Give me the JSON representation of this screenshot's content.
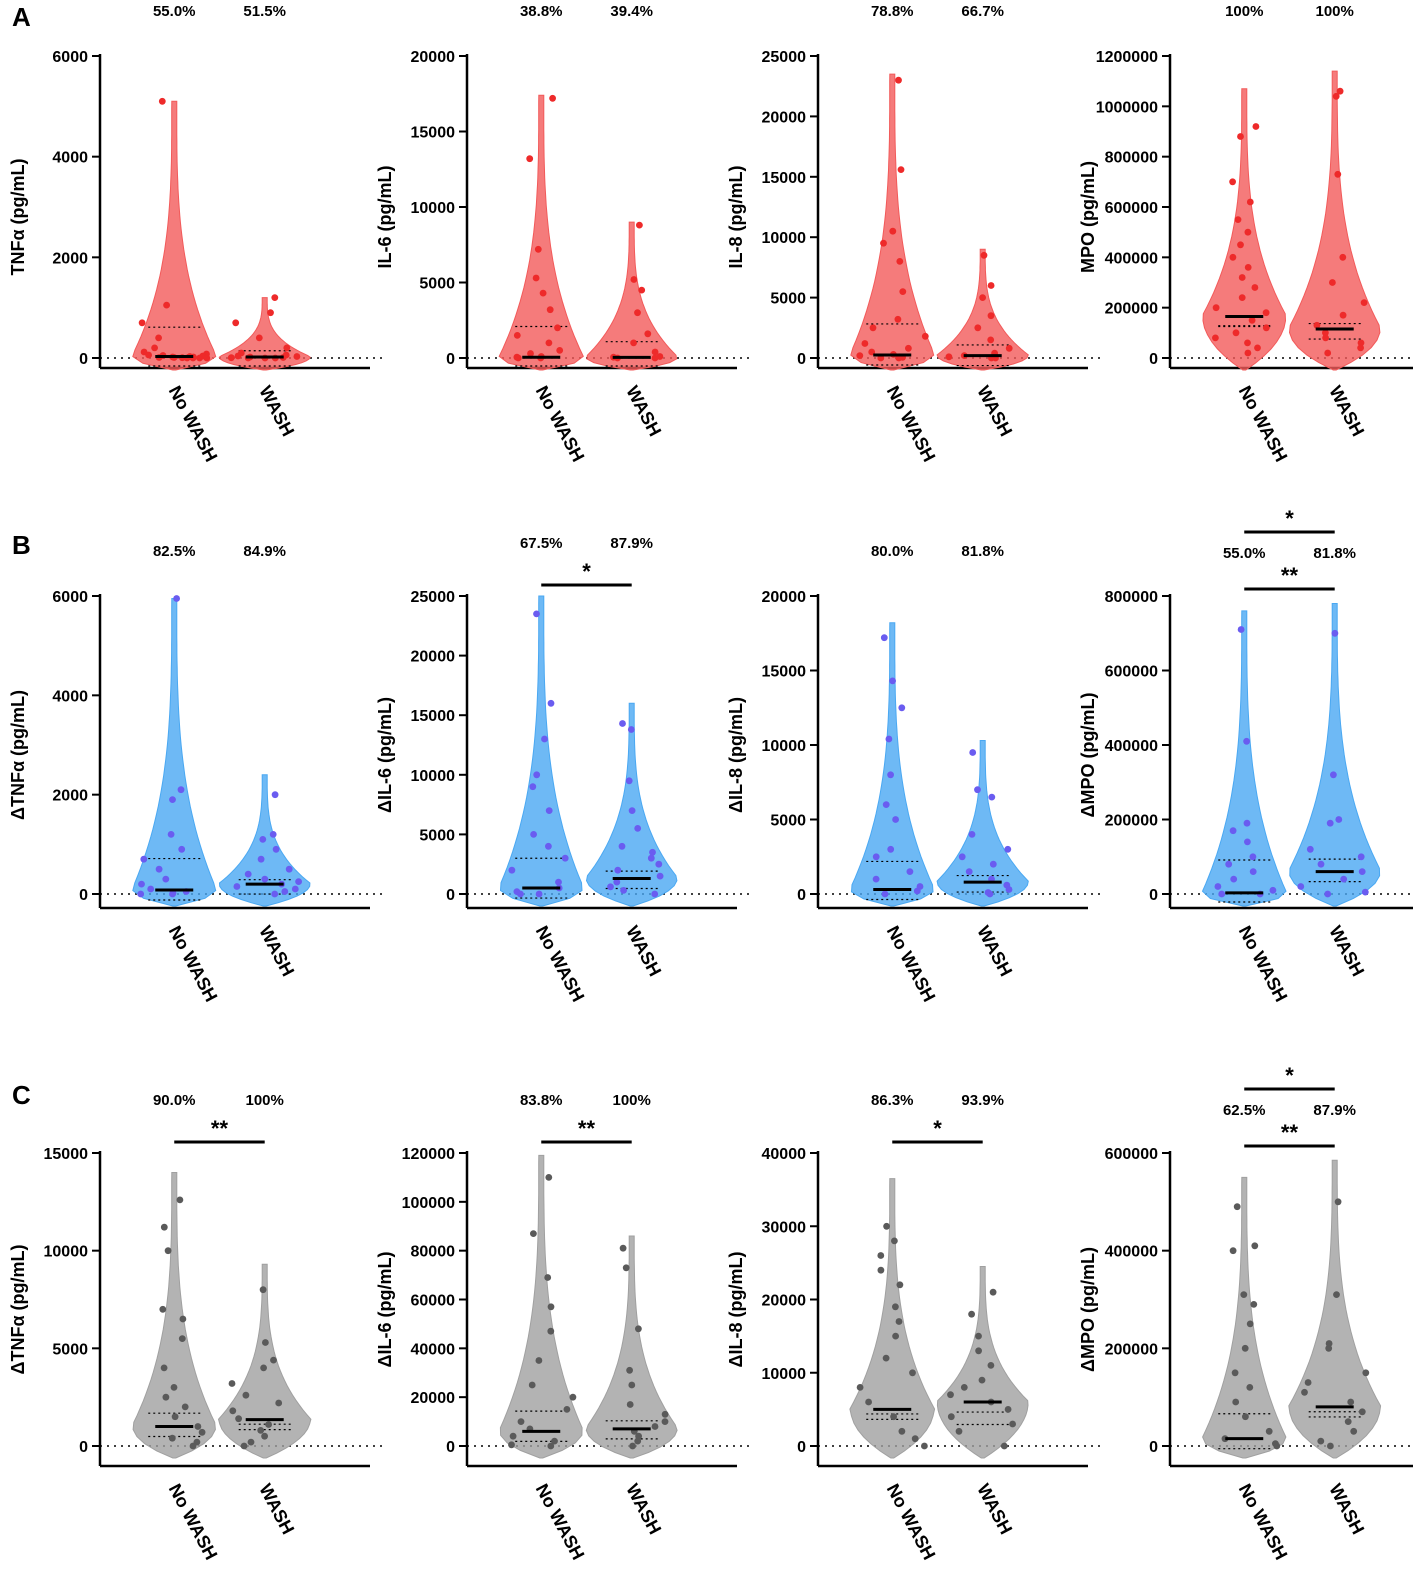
{
  "figure": {
    "panels": [
      {
        "letter": "A",
        "color": "#f25a5a",
        "dot_color": "#ee2a2a"
      },
      {
        "letter": "B",
        "color": "#4aa8f2",
        "dot_color": "#6a5cf0"
      },
      {
        "letter": "C",
        "color": "#a0a0a0",
        "dot_color": "#5a5a5a"
      }
    ]
  },
  "chart_data": [
    {
      "type": "violin",
      "panel": "A",
      "ylabel": "TNFα (pg/mL)",
      "categories": [
        "No WASH",
        "WASH"
      ],
      "ylim": [
        0,
        6000
      ],
      "yticks": [
        0,
        2000,
        4000,
        6000
      ],
      "tick_labels": [
        "0",
        "2000",
        "4000",
        "6000"
      ],
      "detection_labels": [
        "55.0%",
        "51.5%"
      ],
      "medians": [
        30,
        20
      ],
      "max_values": [
        5100,
        1200
      ],
      "points": [
        [
          5100,
          1050,
          700,
          400,
          200,
          120,
          80,
          60,
          50,
          40,
          30,
          20,
          20,
          10,
          10,
          5,
          0,
          0,
          0,
          0
        ],
        [
          1200,
          900,
          700,
          400,
          200,
          100,
          60,
          40,
          30,
          20,
          10,
          5,
          0,
          0,
          0
        ]
      ],
      "significance": []
    },
    {
      "type": "violin",
      "panel": "A",
      "ylabel": "IL-6 (pg/mL)",
      "categories": [
        "No WASH",
        "WASH"
      ],
      "ylim": [
        0,
        20000
      ],
      "yticks": [
        0,
        5000,
        10000,
        15000,
        20000
      ],
      "tick_labels": [
        "0",
        "5000",
        "10000",
        "15000",
        "20000"
      ],
      "detection_labels": [
        "38.8%",
        "39.4%"
      ],
      "medians": [
        50,
        40
      ],
      "max_values": [
        17400,
        9000
      ],
      "points": [
        [
          17200,
          13200,
          7200,
          5300,
          4300,
          3200,
          2000,
          1500,
          1000,
          500,
          300,
          100,
          50,
          0,
          0
        ],
        [
          8800,
          5200,
          4500,
          3000,
          1600,
          1000,
          400,
          100,
          50,
          0,
          0
        ]
      ],
      "significance": []
    },
    {
      "type": "violin",
      "panel": "A",
      "ylabel": "IL-8 (pg/mL)",
      "categories": [
        "No WASH",
        "WASH"
      ],
      "ylim": [
        0,
        25000
      ],
      "yticks": [
        0,
        5000,
        10000,
        15000,
        20000,
        25000
      ],
      "tick_labels": [
        "0",
        "5000",
        "10000",
        "15000",
        "20000",
        "25000"
      ],
      "detection_labels": [
        "78.8%",
        "66.7%"
      ],
      "medians": [
        250,
        200
      ],
      "max_values": [
        23500,
        9000
      ],
      "points": [
        [
          23000,
          15600,
          10500,
          9500,
          8000,
          5500,
          3200,
          2500,
          1800,
          1200,
          800,
          500,
          300,
          200,
          100,
          50,
          0,
          0
        ],
        [
          8500,
          6000,
          5000,
          3500,
          2500,
          1500,
          800,
          400,
          200,
          100,
          0,
          0
        ]
      ],
      "significance": []
    },
    {
      "type": "violin",
      "panel": "A",
      "ylabel": "MPO (pg/mL)",
      "categories": [
        "No WASH",
        "WASH"
      ],
      "ylim": [
        0,
        1200000
      ],
      "yticks": [
        0,
        200000,
        400000,
        600000,
        800000,
        1000000,
        1200000
      ],
      "tick_labels": [
        "0",
        "200000",
        "400000",
        "600000",
        "800000",
        "1000000",
        "1200000"
      ],
      "detection_labels": [
        "100%",
        "100%"
      ],
      "medians": [
        165000,
        115000
      ],
      "max_values": [
        1070000,
        1140000
      ],
      "points": [
        [
          920000,
          880000,
          700000,
          620000,
          550000,
          500000,
          450000,
          400000,
          360000,
          320000,
          280000,
          240000,
          200000,
          180000,
          150000,
          120000,
          100000,
          80000,
          60000,
          40000,
          20000
        ],
        [
          1060000,
          1040000,
          730000,
          400000,
          300000,
          220000,
          170000,
          130000,
          100000,
          80000,
          60000,
          40000,
          20000
        ]
      ],
      "significance": []
    },
    {
      "type": "violin",
      "panel": "B",
      "ylabel": "ΔTNFα (pg/mL)",
      "categories": [
        "No WASH",
        "WASH"
      ],
      "ylim": [
        0,
        6000
      ],
      "yticks": [
        0,
        2000,
        4000,
        6000
      ],
      "tick_labels": [
        "0",
        "2000",
        "4000",
        "6000"
      ],
      "detection_labels": [
        "82.5%",
        "84.9%"
      ],
      "medians": [
        80,
        200
      ],
      "max_values": [
        5950,
        2400
      ],
      "points": [
        [
          5950,
          2100,
          1900,
          1200,
          900,
          700,
          500,
          300,
          200,
          100,
          50,
          20,
          0,
          0
        ],
        [
          2000,
          1200,
          1100,
          900,
          700,
          500,
          400,
          300,
          250,
          200,
          150,
          100,
          50,
          0
        ]
      ],
      "significance": []
    },
    {
      "type": "violin",
      "panel": "B",
      "ylabel": "ΔIL-6 (pg/mL)",
      "categories": [
        "No WASH",
        "WASH"
      ],
      "ylim": [
        0,
        25000
      ],
      "yticks": [
        0,
        5000,
        10000,
        15000,
        20000,
        25000
      ],
      "tick_labels": [
        "0",
        "5000",
        "10000",
        "15000",
        "20000",
        "25000"
      ],
      "detection_labels": [
        "67.5%",
        "87.9%"
      ],
      "medians": [
        500,
        1300
      ],
      "max_values": [
        25000,
        16000
      ],
      "points": [
        [
          23500,
          16000,
          13000,
          10000,
          9000,
          7000,
          5000,
          4000,
          3000,
          2000,
          1000,
          500,
          200,
          0,
          0
        ],
        [
          14300,
          13800,
          9500,
          7000,
          5500,
          4000,
          3500,
          3000,
          2500,
          2000,
          1500,
          1000,
          600,
          300,
          0
        ]
      ],
      "significance": [
        {
          "label": "*",
          "level": 0
        }
      ]
    },
    {
      "type": "violin",
      "panel": "B",
      "ylabel": "ΔIL-8 (pg/mL)",
      "categories": [
        "No WASH",
        "WASH"
      ],
      "ylim": [
        0,
        20000
      ],
      "yticks": [
        0,
        5000,
        10000,
        15000,
        20000
      ],
      "tick_labels": [
        "0",
        "5000",
        "10000",
        "15000",
        "20000"
      ],
      "detection_labels": [
        "80.0%",
        "81.8%"
      ],
      "medians": [
        300,
        800
      ],
      "max_values": [
        18200,
        10300
      ],
      "points": [
        [
          17200,
          14300,
          12500,
          10400,
          8000,
          6000,
          5000,
          3000,
          2500,
          1500,
          1000,
          500,
          200,
          0
        ],
        [
          9500,
          7000,
          6500,
          4000,
          3000,
          2500,
          2000,
          1500,
          1000,
          600,
          300,
          100,
          0
        ]
      ],
      "significance": []
    },
    {
      "type": "violin",
      "panel": "B",
      "ylabel": "ΔMPO (pg/mL)",
      "categories": [
        "No WASH",
        "WASH"
      ],
      "ylim": [
        0,
        800000
      ],
      "yticks": [
        0,
        200000,
        400000,
        600000,
        800000
      ],
      "tick_labels": [
        "0",
        "200000",
        "400000",
        "600000",
        "800000"
      ],
      "detection_labels": [
        "55.0%",
        "81.8%"
      ],
      "medians": [
        3000,
        60000
      ],
      "max_values": [
        760000,
        780000
      ],
      "points": [
        [
          710000,
          410000,
          190000,
          170000,
          140000,
          100000,
          80000,
          60000,
          40000,
          20000,
          10000,
          0,
          0
        ],
        [
          700000,
          320000,
          200000,
          190000,
          120000,
          100000,
          80000,
          60000,
          40000,
          20000,
          5000,
          0
        ]
      ],
      "significance": [
        {
          "label": "**",
          "level": 0
        },
        {
          "label": "*",
          "level": 1
        }
      ]
    },
    {
      "type": "violin",
      "panel": "C",
      "ylabel": "ΔTNFα (pg/mL)",
      "categories": [
        "No WASH",
        "WASH"
      ],
      "ylim": [
        0,
        15000
      ],
      "yticks": [
        0,
        5000,
        10000,
        15000
      ],
      "tick_labels": [
        "0",
        "5000",
        "10000",
        "15000"
      ],
      "detection_labels": [
        "90.0%",
        "100%"
      ],
      "medians": [
        1000,
        1350
      ],
      "max_values": [
        14000,
        9300
      ],
      "points": [
        [
          12600,
          11200,
          10000,
          7000,
          6500,
          5500,
          4000,
          3000,
          2500,
          2000,
          1500,
          1000,
          700,
          400,
          200,
          0
        ],
        [
          8000,
          5300,
          4400,
          4000,
          3200,
          2600,
          2200,
          1800,
          1400,
          1100,
          800,
          500,
          200,
          0
        ]
      ],
      "significance": [
        {
          "label": "**",
          "level": 0
        }
      ]
    },
    {
      "type": "violin",
      "panel": "C",
      "ylabel": "ΔIL-6 (pg/mL)",
      "categories": [
        "No WASH",
        "WASH"
      ],
      "ylim": [
        0,
        120000
      ],
      "yticks": [
        0,
        20000,
        40000,
        60000,
        80000,
        100000,
        120000
      ],
      "tick_labels": [
        "0",
        "20000",
        "40000",
        "60000",
        "80000",
        "100000",
        "120000"
      ],
      "detection_labels": [
        "83.8%",
        "100%"
      ],
      "medians": [
        6000,
        7000
      ],
      "max_values": [
        119000,
        86000
      ],
      "points": [
        [
          110000,
          87000,
          69000,
          57000,
          47000,
          35000,
          25000,
          20000,
          15000,
          10000,
          7000,
          4000,
          2000,
          500,
          0
        ],
        [
          81000,
          73000,
          48000,
          31000,
          25000,
          17000,
          13000,
          10000,
          8000,
          6000,
          4000,
          2000,
          0
        ]
      ],
      "significance": [
        {
          "label": "**",
          "level": 0
        }
      ]
    },
    {
      "type": "violin",
      "panel": "C",
      "ylabel": "ΔIL-8 (pg/mL)",
      "categories": [
        "No WASH",
        "WASH"
      ],
      "ylim": [
        0,
        40000
      ],
      "yticks": [
        0,
        10000,
        20000,
        30000,
        40000
      ],
      "tick_labels": [
        "0",
        "10000",
        "20000",
        "30000",
        "40000"
      ],
      "detection_labels": [
        "86.3%",
        "93.9%"
      ],
      "medians": [
        5000,
        6000
      ],
      "max_values": [
        36500,
        24500
      ],
      "points": [
        [
          30000,
          28000,
          26000,
          24000,
          22000,
          19000,
          17000,
          15000,
          12000,
          10000,
          8000,
          6000,
          4000,
          2000,
          1000,
          0
        ],
        [
          21000,
          18000,
          15000,
          13000,
          11000,
          9000,
          8000,
          7000,
          6000,
          5000,
          4000,
          3000,
          2000,
          0
        ]
      ],
      "significance": [
        {
          "label": "*",
          "level": 0
        }
      ]
    },
    {
      "type": "violin",
      "panel": "C",
      "ylabel": "ΔMPO (pg/mL)",
      "categories": [
        "No WASH",
        "WASH"
      ],
      "ylim": [
        0,
        600000
      ],
      "yticks": [
        0,
        200000,
        400000,
        600000
      ],
      "tick_labels": [
        "0",
        "200000",
        "400000",
        "600000"
      ],
      "detection_labels": [
        "62.5%",
        "87.9%"
      ],
      "medians": [
        15000,
        80000
      ],
      "max_values": [
        550000,
        585000
      ],
      "points": [
        [
          490000,
          410000,
          400000,
          310000,
          290000,
          250000,
          200000,
          150000,
          120000,
          90000,
          60000,
          30000,
          15000,
          5000,
          0
        ],
        [
          500000,
          310000,
          210000,
          200000,
          150000,
          130000,
          110000,
          90000,
          70000,
          50000,
          30000,
          10000,
          0
        ]
      ],
      "significance": [
        {
          "label": "**",
          "level": 0
        },
        {
          "label": "*",
          "level": 1
        }
      ]
    }
  ]
}
